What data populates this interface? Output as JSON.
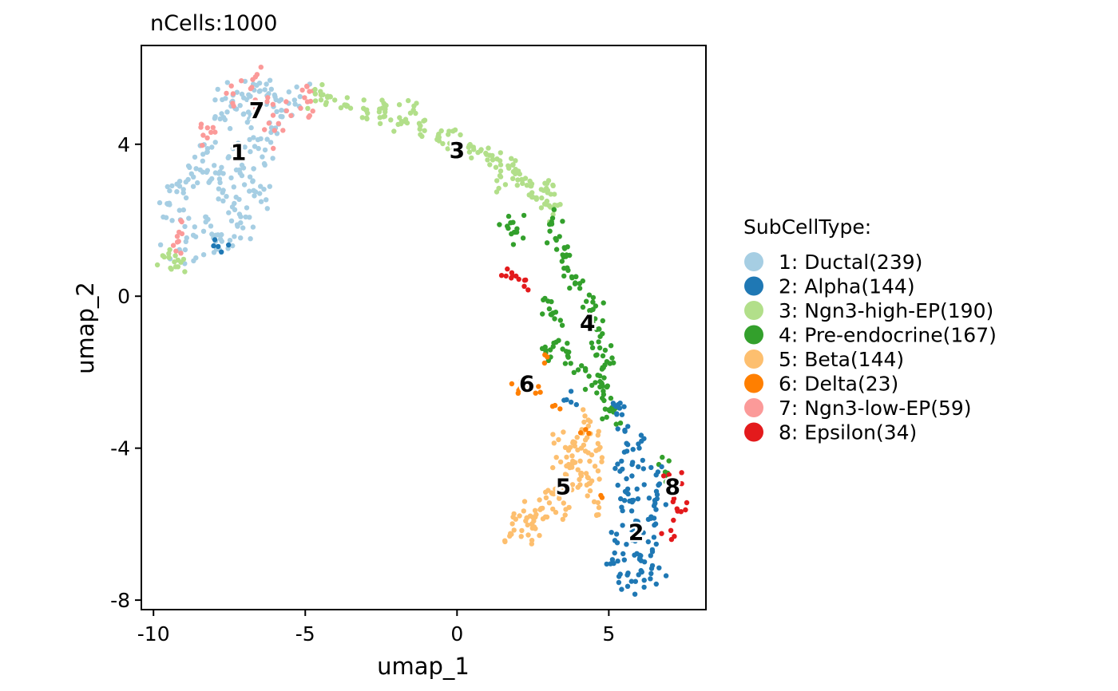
{
  "chart_data": {
    "type": "scatter",
    "title": "nCells:1000",
    "xlabel": "umap_1",
    "ylabel": "umap_2",
    "xlim": [
      -10.4,
      8.2
    ],
    "ylim": [
      -8.25,
      6.6
    ],
    "x_ticks": [
      {
        "value": -10,
        "label": "-10"
      },
      {
        "value": -5,
        "label": "-5"
      },
      {
        "value": 0,
        "label": "0"
      },
      {
        "value": 5,
        "label": "5"
      }
    ],
    "y_ticks": [
      {
        "value": 4,
        "label": "4"
      },
      {
        "value": 0,
        "label": "0"
      },
      {
        "value": -4,
        "label": "-4"
      },
      {
        "value": -8,
        "label": "-8"
      }
    ],
    "grid": false,
    "legend": {
      "title": "SubCellType:",
      "position": "right",
      "entries": [
        {
          "id": "1",
          "label": "1: Ductal(239)",
          "color": "#A6CEE3"
        },
        {
          "id": "2",
          "label": "2: Alpha(144)",
          "color": "#1F78B4"
        },
        {
          "id": "3",
          "label": "3: Ngn3-high-EP(190)",
          "color": "#B2DF8A"
        },
        {
          "id": "4",
          "label": "4: Pre-endocrine(167)",
          "color": "#33A02C"
        },
        {
          "id": "5",
          "label": "5: Beta(144)",
          "color": "#FDBF6F"
        },
        {
          "id": "6",
          "label": "6: Delta(23)",
          "color": "#FF7F00"
        },
        {
          "id": "7",
          "label": "7: Ngn3-low-EP(59)",
          "color": "#FB9A99"
        },
        {
          "id": "8",
          "label": "8: Epsilon(34)",
          "color": "#E31A1C"
        }
      ]
    },
    "cluster_labels": [
      {
        "text": "1",
        "x": -7.2,
        "y": 3.8
      },
      {
        "text": "7",
        "x": -6.6,
        "y": 4.9
      },
      {
        "text": "3",
        "x": 0.0,
        "y": 3.85
      },
      {
        "text": "4",
        "x": 4.3,
        "y": -0.7
      },
      {
        "text": "6",
        "x": 2.3,
        "y": -2.3
      },
      {
        "text": "5",
        "x": 3.5,
        "y": -5.0
      },
      {
        "text": "8",
        "x": 7.1,
        "y": -5.0
      },
      {
        "text": "2",
        "x": 5.9,
        "y": -6.2
      }
    ],
    "series": [
      {
        "id": "1",
        "count": 239,
        "color": "#A6CEE3",
        "anchors": [
          [
            -9.4,
            2.2
          ],
          [
            -9.3,
            2.6
          ],
          [
            -9.1,
            2.9
          ],
          [
            -8.8,
            3.2
          ],
          [
            -8.7,
            1.5
          ],
          [
            -9.0,
            1.1
          ],
          [
            -8.4,
            3.6
          ],
          [
            -8.2,
            3.9
          ],
          [
            -8.0,
            3.3
          ],
          [
            -7.8,
            2.8
          ],
          [
            -7.6,
            2.4
          ],
          [
            -7.5,
            3.5
          ],
          [
            -8.3,
            2.0
          ],
          [
            -8.0,
            1.4
          ],
          [
            -7.7,
            1.7
          ],
          [
            -7.3,
            1.6
          ],
          [
            -7.1,
            2.1
          ],
          [
            -7.0,
            3.1
          ],
          [
            -7.2,
            3.9
          ],
          [
            -6.9,
            2.6
          ],
          [
            -6.5,
            2.7
          ],
          [
            -6.4,
            3.3
          ],
          [
            -6.5,
            4.0
          ],
          [
            -7.0,
            4.6
          ],
          [
            -7.6,
            4.6
          ],
          [
            -7.8,
            5.0
          ],
          [
            -7.4,
            5.2
          ],
          [
            -6.9,
            5.3
          ],
          [
            -6.6,
            5.6
          ],
          [
            -6.2,
            5.3
          ],
          [
            -6.0,
            4.8
          ],
          [
            -6.2,
            4.2
          ],
          [
            -5.6,
            5.0
          ],
          [
            -5.3,
            5.2
          ]
        ],
        "spread": 0.22
      },
      {
        "id": "7",
        "count": 59,
        "color": "#FB9A99",
        "anchors": [
          [
            -9.2,
            1.4
          ],
          [
            -9.0,
            1.7
          ],
          [
            -8.4,
            4.3
          ],
          [
            -8.1,
            4.5
          ],
          [
            -7.3,
            5.4
          ],
          [
            -7.0,
            5.5
          ],
          [
            -6.6,
            5.7
          ],
          [
            -6.5,
            5.1
          ],
          [
            -6.2,
            4.7
          ],
          [
            -5.9,
            4.4
          ],
          [
            -5.4,
            4.9
          ],
          [
            -4.9,
            4.9
          ],
          [
            -4.6,
            5.2
          ],
          [
            -5.0,
            5.4
          ]
        ],
        "spread": 0.15
      },
      {
        "id": "3",
        "count": 190,
        "color": "#B2DF8A",
        "anchors": [
          [
            -9.5,
            0.95
          ],
          [
            -9.1,
            0.85
          ],
          [
            -4.6,
            5.3
          ],
          [
            -4.2,
            5.15
          ],
          [
            -3.6,
            5.0
          ],
          [
            -3.0,
            4.9
          ],
          [
            -2.4,
            4.75
          ],
          [
            -1.8,
            4.6
          ],
          [
            -1.2,
            4.45
          ],
          [
            -0.6,
            4.25
          ],
          [
            -0.1,
            4.05
          ],
          [
            0.4,
            3.9
          ],
          [
            0.9,
            3.75
          ],
          [
            1.3,
            3.6
          ],
          [
            1.7,
            3.35
          ],
          [
            2.0,
            3.15
          ],
          [
            2.3,
            2.95
          ],
          [
            2.6,
            2.75
          ],
          [
            2.9,
            2.5
          ],
          [
            3.2,
            2.2
          ],
          [
            3.0,
            2.9
          ],
          [
            1.5,
            3.0
          ],
          [
            -2.5,
            5.0
          ],
          [
            -1.5,
            4.9
          ]
        ],
        "spread": 0.14
      },
      {
        "id": "4",
        "count": 167,
        "color": "#33A02C",
        "anchors": [
          [
            1.7,
            2.0
          ],
          [
            1.9,
            1.6
          ],
          [
            3.1,
            1.9
          ],
          [
            3.3,
            1.4
          ],
          [
            3.5,
            1.0
          ],
          [
            3.7,
            0.6
          ],
          [
            4.0,
            0.3
          ],
          [
            4.3,
            -0.1
          ],
          [
            4.5,
            -0.5
          ],
          [
            4.7,
            -0.9
          ],
          [
            4.8,
            -1.3
          ],
          [
            4.9,
            -1.7
          ],
          [
            4.8,
            -2.1
          ],
          [
            4.7,
            -2.5
          ],
          [
            5.0,
            -2.9
          ],
          [
            5.3,
            -3.2
          ],
          [
            3.0,
            -0.2
          ],
          [
            3.2,
            -0.6
          ],
          [
            3.3,
            -1.2
          ],
          [
            2.9,
            -1.5
          ],
          [
            3.6,
            -1.5
          ],
          [
            4.0,
            -2.0
          ],
          [
            4.5,
            -2.3
          ],
          [
            6.9,
            -4.6
          ],
          [
            7.0,
            -4.9
          ]
        ],
        "spread": 0.16
      },
      {
        "id": "5",
        "count": 144,
        "color": "#FDBF6F",
        "anchors": [
          [
            1.8,
            -6.2
          ],
          [
            2.1,
            -6.0
          ],
          [
            2.4,
            -5.8
          ],
          [
            2.7,
            -5.6
          ],
          [
            3.0,
            -5.3
          ],
          [
            3.3,
            -5.1
          ],
          [
            3.6,
            -4.7
          ],
          [
            3.9,
            -4.4
          ],
          [
            4.2,
            -4.1
          ],
          [
            4.4,
            -3.7
          ],
          [
            4.3,
            -3.3
          ],
          [
            3.8,
            -3.8
          ],
          [
            3.4,
            -3.9
          ],
          [
            3.6,
            -4.3
          ],
          [
            4.0,
            -4.8
          ],
          [
            4.4,
            -5.0
          ],
          [
            4.6,
            -5.6
          ],
          [
            3.3,
            -5.7
          ],
          [
            2.5,
            -6.3
          ],
          [
            4.6,
            -4.4
          ]
        ],
        "spread": 0.18
      },
      {
        "id": "6",
        "count": 23,
        "color": "#FF7F00",
        "anchors": [
          [
            2.0,
            -2.3
          ],
          [
            2.3,
            -2.4
          ],
          [
            2.6,
            -2.4
          ],
          [
            2.1,
            -2.6
          ],
          [
            3.2,
            -2.9
          ],
          [
            2.8,
            -1.6
          ],
          [
            4.2,
            -3.5
          ],
          [
            4.9,
            -5.3
          ]
        ],
        "spread": 0.1
      },
      {
        "id": "8",
        "count": 34,
        "color": "#E31A1C",
        "anchors": [
          [
            1.7,
            0.5
          ],
          [
            1.9,
            0.55
          ],
          [
            2.2,
            0.3
          ],
          [
            7.0,
            -4.8
          ],
          [
            7.3,
            -4.9
          ],
          [
            7.2,
            -5.3
          ],
          [
            7.4,
            -5.6
          ],
          [
            7.1,
            -5.9
          ],
          [
            7.0,
            -6.3
          ]
        ],
        "spread": 0.12
      },
      {
        "id": "2",
        "count": 144,
        "color": "#1F78B4",
        "anchors": [
          [
            5.4,
            -7.4
          ],
          [
            5.8,
            -7.5
          ],
          [
            6.2,
            -7.4
          ],
          [
            6.5,
            -7.2
          ],
          [
            5.2,
            -6.9
          ],
          [
            5.6,
            -6.7
          ],
          [
            6.0,
            -6.9
          ],
          [
            6.4,
            -6.6
          ],
          [
            5.3,
            -6.4
          ],
          [
            5.7,
            -6.1
          ],
          [
            6.1,
            -6.2
          ],
          [
            6.4,
            -5.9
          ],
          [
            5.6,
            -5.7
          ],
          [
            5.9,
            -5.4
          ],
          [
            6.3,
            -5.6
          ],
          [
            5.5,
            -5.2
          ],
          [
            5.8,
            -4.8
          ],
          [
            6.1,
            -4.5
          ],
          [
            5.4,
            -4.6
          ],
          [
            5.7,
            -4.2
          ],
          [
            6.0,
            -3.9
          ],
          [
            5.6,
            -3.5
          ],
          [
            5.4,
            -3.0
          ],
          [
            5.2,
            -2.8
          ],
          [
            6.6,
            -4.8
          ],
          [
            6.7,
            -5.3
          ],
          [
            -7.8,
            1.3
          ],
          [
            3.7,
            -2.7
          ]
        ],
        "spread": 0.17
      }
    ]
  }
}
